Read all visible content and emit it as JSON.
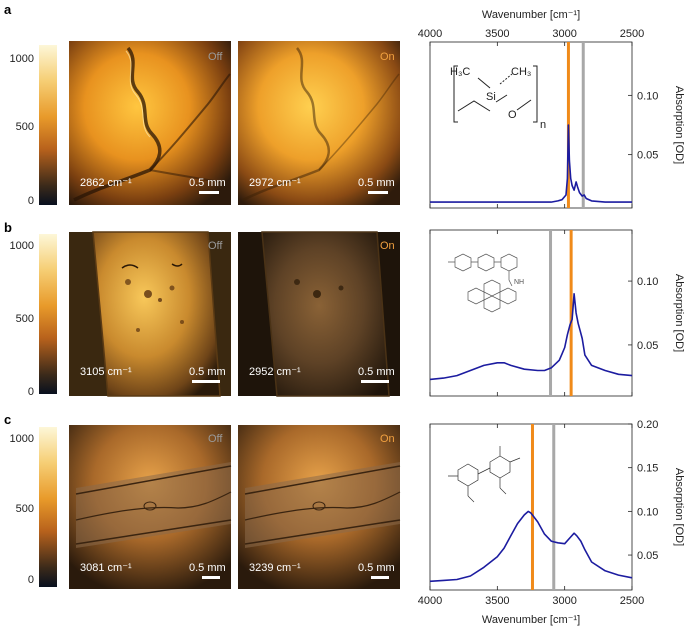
{
  "colors": {
    "spectrum": "#1c1ca0",
    "on_marker": "#f08a1a",
    "off_marker": "#a8a8a8",
    "off_label": "#9a9a9a",
    "on_label": "#f0a040"
  },
  "colorbar": {
    "ticks": [
      "1000",
      "500",
      "0"
    ],
    "tick_values": [
      1000,
      500,
      0
    ]
  },
  "image_text": {
    "off": "Off",
    "on": "On",
    "scalebar": "0.5 mm"
  },
  "top_axis": {
    "label": "Wavenumber [cm⁻¹]",
    "ticks": [
      "4000",
      "3500",
      "3000",
      "2500"
    ]
  },
  "bottom_axis": {
    "label": "Wavenumber [cm⁻¹]",
    "ticks": [
      "4000",
      "3500",
      "3000",
      "2500"
    ]
  },
  "right_axis_label": "Absorption [OD]",
  "panels": [
    {
      "letter": "a",
      "off_wavenumber": "2862 cm⁻¹",
      "on_wavenumber": "2972 cm⁻¹",
      "right_ticks": [
        "0.10",
        "0.05"
      ],
      "structure": "polydimethylsiloxane",
      "structure_labels": {
        "left_methyl": "H₃C",
        "right_methyl": "CH₃",
        "silicon": "Si",
        "oxygen": "O",
        "repeat": "n"
      }
    },
    {
      "letter": "b",
      "off_wavenumber": "3105 cm⁻¹",
      "on_wavenumber": "2952 cm⁻¹",
      "right_ticks": [
        "0.10",
        "0.05"
      ],
      "structure": "pyrene-functionalized polymer"
    },
    {
      "letter": "c",
      "off_wavenumber": "3081 cm⁻¹",
      "on_wavenumber": "3239 cm⁻¹",
      "right_ticks": [
        "0.20",
        "0.15",
        "0.10",
        "0.05"
      ],
      "structure": "chitin disaccharide"
    }
  ],
  "chart_data": [
    {
      "type": "line",
      "title": "a",
      "xlabel": "Wavenumber [cm⁻¹]",
      "ylabel": "Absorption [OD]",
      "xlim": [
        4000,
        2500
      ],
      "ylim": [
        0.005,
        0.145
      ],
      "on_marker": 2972,
      "off_marker": 2862,
      "x": [
        4000,
        3800,
        3600,
        3400,
        3200,
        3100,
        3050,
        3020,
        2990,
        2980,
        2972,
        2965,
        2955,
        2945,
        2930,
        2915,
        2905,
        2890,
        2870,
        2855,
        2840,
        2800,
        2700,
        2600,
        2500
      ],
      "series": [
        {
          "name": "PDMS",
          "values": [
            0.01,
            0.01,
            0.01,
            0.01,
            0.01,
            0.01,
            0.011,
            0.012,
            0.016,
            0.03,
            0.075,
            0.045,
            0.03,
            0.024,
            0.02,
            0.027,
            0.023,
            0.018,
            0.015,
            0.016,
            0.013,
            0.011,
            0.01,
            0.01,
            0.01
          ]
        }
      ]
    },
    {
      "type": "line",
      "title": "b",
      "xlabel": "Wavenumber [cm⁻¹]",
      "ylabel": "Absorption [OD]",
      "xlim": [
        4000,
        2500
      ],
      "ylim": [
        0.01,
        0.14
      ],
      "on_marker": 2952,
      "off_marker": 3105,
      "x": [
        4000,
        3900,
        3800,
        3700,
        3600,
        3500,
        3450,
        3400,
        3300,
        3200,
        3150,
        3100,
        3060,
        3040,
        3020,
        3000,
        2980,
        2960,
        2945,
        2930,
        2915,
        2900,
        2885,
        2870,
        2850,
        2800,
        2700,
        2600,
        2500
      ],
      "series": [
        {
          "name": "pyrene polymer",
          "values": [
            0.023,
            0.024,
            0.026,
            0.03,
            0.034,
            0.036,
            0.036,
            0.034,
            0.031,
            0.03,
            0.03,
            0.032,
            0.036,
            0.038,
            0.043,
            0.048,
            0.058,
            0.066,
            0.07,
            0.09,
            0.075,
            0.067,
            0.061,
            0.055,
            0.042,
            0.034,
            0.03,
            0.027,
            0.026
          ]
        }
      ]
    },
    {
      "type": "line",
      "title": "c",
      "xlabel": "Wavenumber [cm⁻¹]",
      "ylabel": "Absorption [OD]",
      "xlim": [
        4000,
        2500
      ],
      "ylim": [
        0.01,
        0.2
      ],
      "on_marker": 3239,
      "off_marker": 3081,
      "x": [
        4000,
        3900,
        3800,
        3700,
        3600,
        3500,
        3450,
        3400,
        3350,
        3300,
        3270,
        3250,
        3200,
        3150,
        3100,
        3080,
        3050,
        3000,
        2960,
        2930,
        2910,
        2880,
        2850,
        2800,
        2700,
        2600,
        2500
      ],
      "series": [
        {
          "name": "chitin",
          "values": [
            0.02,
            0.021,
            0.022,
            0.026,
            0.036,
            0.048,
            0.058,
            0.072,
            0.086,
            0.096,
            0.1,
            0.098,
            0.088,
            0.074,
            0.066,
            0.065,
            0.064,
            0.063,
            0.07,
            0.075,
            0.072,
            0.066,
            0.056,
            0.042,
            0.032,
            0.027,
            0.024
          ]
        }
      ]
    }
  ]
}
